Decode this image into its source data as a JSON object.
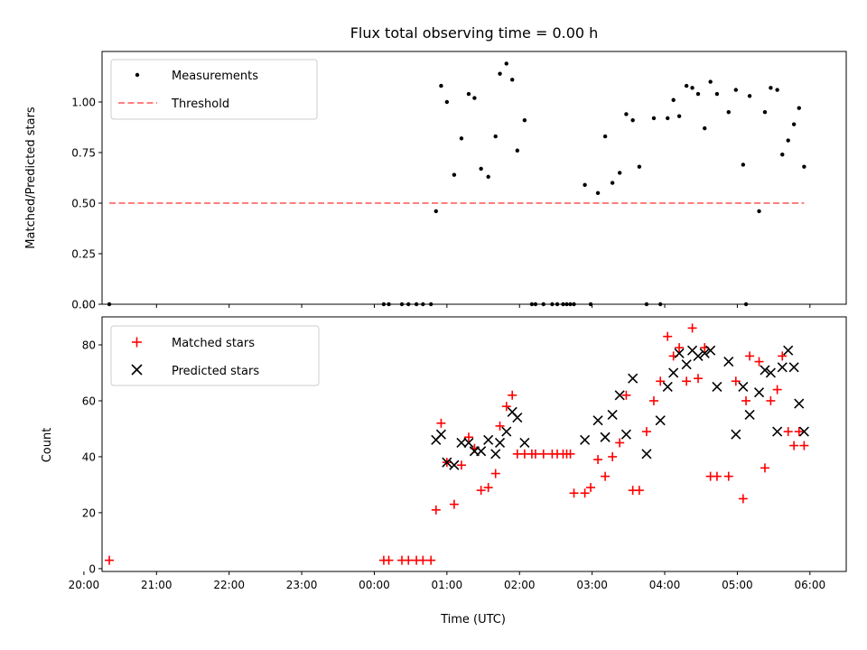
{
  "figure": {
    "title": "Flux total observing time = 0.00 h",
    "xlabel": "Time (UTC)"
  },
  "chart_data": [
    {
      "type": "scatter",
      "name": "ratio-panel",
      "ylabel": "Matched/Predicted stars",
      "xlim": [
        20.25,
        30.5
      ],
      "ylim": [
        0,
        1.25
      ],
      "yticks": [
        0.0,
        0.25,
        0.5,
        0.75,
        1.0
      ],
      "ytick_labels": [
        "0.00",
        "0.25",
        "0.50",
        "0.75",
        "1.00"
      ],
      "legend": {
        "position": "top-left",
        "entries": [
          "Measurements",
          "Threshold"
        ]
      },
      "series": [
        {
          "name": "Measurements",
          "marker": "dot",
          "color": "#000000",
          "x": [
            20.35,
            24.13,
            24.2,
            24.38,
            24.47,
            24.58,
            24.67,
            24.78,
            24.85,
            24.92,
            25.0,
            25.1,
            25.2,
            25.3,
            25.38,
            25.47,
            25.57,
            25.67,
            25.73,
            25.82,
            25.9,
            25.97,
            26.07,
            26.17,
            26.22,
            26.33,
            26.45,
            26.52,
            26.6,
            26.65,
            26.7,
            26.75,
            26.9,
            26.98,
            27.08,
            27.18,
            27.28,
            27.38,
            27.47,
            27.56,
            27.65,
            27.75,
            27.85,
            27.94,
            28.04,
            28.12,
            28.2,
            28.3,
            28.38,
            28.46,
            28.55,
            28.63,
            28.72,
            28.88,
            28.98,
            29.08,
            29.12,
            29.17,
            29.3,
            29.38,
            29.46,
            29.55,
            29.62,
            29.7,
            29.78,
            29.85,
            29.92
          ],
          "y": [
            0.0,
            0.0,
            0.0,
            0.0,
            0.0,
            0.0,
            0.0,
            0.0,
            0.46,
            1.08,
            1.0,
            0.64,
            0.82,
            1.04,
            1.02,
            0.67,
            0.63,
            0.83,
            1.14,
            1.19,
            1.11,
            0.76,
            0.91,
            0.0,
            0.0,
            0.0,
            0.0,
            0.0,
            0.0,
            0.0,
            0.0,
            0.0,
            0.59,
            0.0,
            0.55,
            0.83,
            0.6,
            0.65,
            0.94,
            0.91,
            0.68,
            0.0,
            0.92,
            0.0,
            0.92,
            1.01,
            0.93,
            1.08,
            1.07,
            1.04,
            0.87,
            1.1,
            1.04,
            0.95,
            1.06,
            0.69,
            0.0,
            1.03,
            0.46,
            0.95,
            1.07,
            1.06,
            0.74,
            0.81,
            0.89,
            0.97,
            0.68
          ]
        },
        {
          "name": "Threshold",
          "marker": "dashed-line",
          "color": "#ff7f7f",
          "x": [
            20.35,
            29.92
          ],
          "y": [
            0.5,
            0.5
          ]
        }
      ]
    },
    {
      "type": "scatter",
      "name": "count-panel",
      "ylabel": "Count",
      "xlim": [
        20.25,
        30.5
      ],
      "ylim": [
        -1,
        90
      ],
      "yticks": [
        0,
        20,
        40,
        60,
        80
      ],
      "ytick_labels": [
        "0",
        "20",
        "40",
        "60",
        "80"
      ],
      "xticks": [
        20,
        21,
        22,
        23,
        24,
        25,
        26,
        27,
        28,
        29,
        30
      ],
      "xtick_labels": [
        "20:00",
        "21:00",
        "22:00",
        "23:00",
        "00:00",
        "01:00",
        "02:00",
        "03:00",
        "04:00",
        "05:00",
        "06:00"
      ],
      "legend": {
        "position": "top-left",
        "entries": [
          "Matched stars",
          "Predicted stars"
        ]
      },
      "series": [
        {
          "name": "Matched stars",
          "marker": "plus",
          "color": "#ff0000",
          "x": [
            20.35,
            24.13,
            24.2,
            24.38,
            24.47,
            24.58,
            24.67,
            24.78,
            24.85,
            24.92,
            25.0,
            25.1,
            25.2,
            25.3,
            25.38,
            25.47,
            25.57,
            25.67,
            25.73,
            25.82,
            25.9,
            25.97,
            26.07,
            26.17,
            26.22,
            26.33,
            26.45,
            26.52,
            26.6,
            26.65,
            26.7,
            26.75,
            26.9,
            26.98,
            27.08,
            27.18,
            27.28,
            27.38,
            27.47,
            27.56,
            27.65,
            27.75,
            27.85,
            27.94,
            28.04,
            28.12,
            28.2,
            28.3,
            28.38,
            28.46,
            28.55,
            28.63,
            28.72,
            28.88,
            28.98,
            29.08,
            29.12,
            29.17,
            29.3,
            29.38,
            29.46,
            29.55,
            29.62,
            29.7,
            29.78,
            29.85,
            29.92
          ],
          "y": [
            3,
            3,
            3,
            3,
            3,
            3,
            3,
            3,
            21,
            52,
            38,
            23,
            37,
            47,
            43,
            28,
            29,
            34,
            51,
            58,
            62,
            41,
            41,
            41,
            41,
            41,
            41,
            41,
            41,
            41,
            41,
            27,
            27,
            29,
            39,
            33,
            40,
            45,
            62,
            28,
            28,
            49,
            60,
            67,
            83,
            76,
            79,
            67,
            86,
            68,
            79,
            33,
            33,
            33,
            67,
            25,
            60,
            76,
            74,
            36,
            60,
            64,
            76,
            49,
            44,
            49,
            44
          ]
        },
        {
          "name": "Predicted stars",
          "marker": "x",
          "color": "#000000",
          "x": [
            24.85,
            24.92,
            25.0,
            25.1,
            25.2,
            25.3,
            25.38,
            25.47,
            25.57,
            25.67,
            25.73,
            25.82,
            25.9,
            25.97,
            26.07,
            26.9,
            27.08,
            27.18,
            27.28,
            27.38,
            27.47,
            27.56,
            27.75,
            27.94,
            28.04,
            28.12,
            28.2,
            28.3,
            28.38,
            28.46,
            28.55,
            28.63,
            28.72,
            28.88,
            28.98,
            29.08,
            29.17,
            29.3,
            29.38,
            29.46,
            29.55,
            29.62,
            29.7,
            29.78,
            29.85,
            29.92
          ],
          "y": [
            46,
            48,
            38,
            37,
            45,
            45,
            42,
            42,
            46,
            41,
            45,
            49,
            56,
            54,
            45,
            46,
            53,
            47,
            55,
            62,
            48,
            68,
            41,
            53,
            65,
            70,
            77,
            73,
            78,
            76,
            77,
            78,
            65,
            74,
            48,
            65,
            55,
            63,
            71,
            70,
            49,
            72,
            78,
            72,
            59,
            49
          ]
        }
      ]
    }
  ]
}
